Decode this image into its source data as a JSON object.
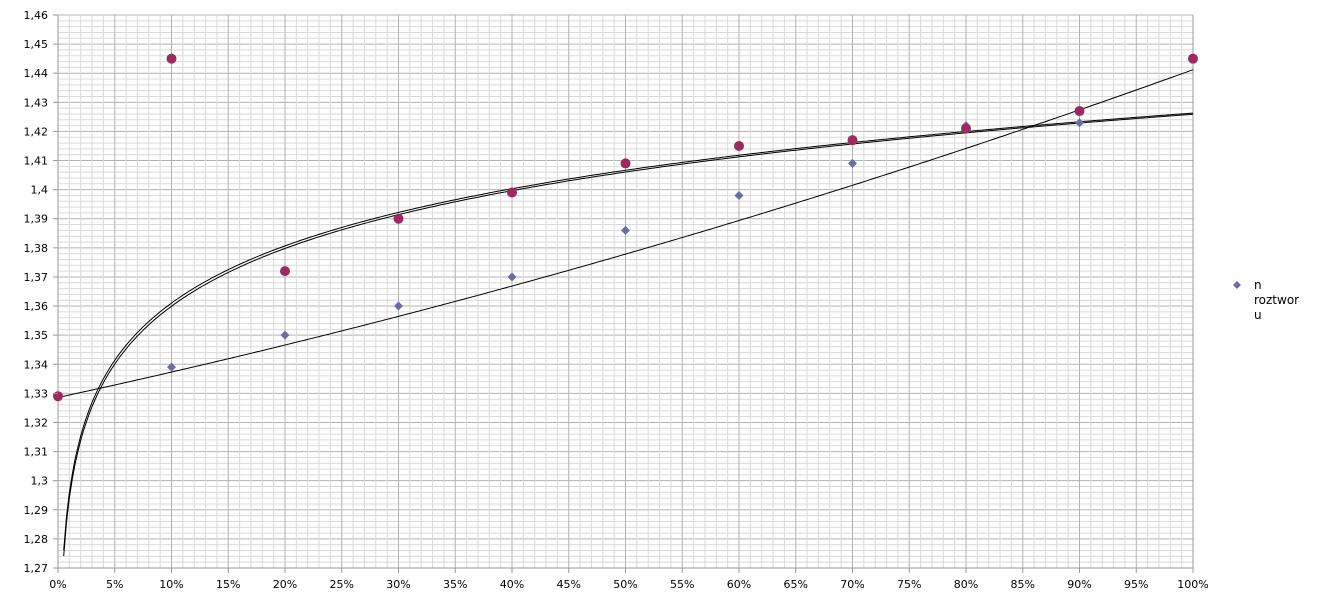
{
  "chart_data": {
    "type": "scatter",
    "title": "",
    "xlabel": "",
    "ylabel": "",
    "xlim": [
      0,
      1
    ],
    "ylim": [
      1.27,
      1.46
    ],
    "x_ticks": [
      0,
      0.05,
      0.1,
      0.15,
      0.2,
      0.25,
      0.3,
      0.35,
      0.4,
      0.45,
      0.5,
      0.55,
      0.6,
      0.65,
      0.7,
      0.75,
      0.8,
      0.85,
      0.9,
      0.95,
      1.0
    ],
    "x_tick_labels": [
      "0%",
      "5%",
      "10%",
      "15%",
      "20%",
      "25%",
      "30%",
      "35%",
      "40%",
      "45%",
      "50%",
      "55%",
      "60%",
      "65%",
      "70%",
      "75%",
      "80%",
      "85%",
      "90%",
      "95%",
      "100%"
    ],
    "y_ticks": [
      1.27,
      1.28,
      1.29,
      1.3,
      1.31,
      1.32,
      1.33,
      1.34,
      1.35,
      1.36,
      1.37,
      1.38,
      1.39,
      1.4,
      1.41,
      1.42,
      1.43,
      1.44,
      1.45,
      1.46
    ],
    "y_tick_labels": [
      "1,27",
      "1,28",
      "1,29",
      "1,3",
      "1,31",
      "1,32",
      "1,33",
      "1,34",
      "1,35",
      "1,36",
      "1,37",
      "1,38",
      "1,39",
      "1,4",
      "1,41",
      "1,42",
      "1,43",
      "1,44",
      "1,45",
      "1,46"
    ],
    "grid": true,
    "legend_position": "right",
    "legend_lines": [
      "n",
      "roztwor",
      "u"
    ],
    "series": [
      {
        "name": "n roztworu",
        "marker": "diamond",
        "color": "#6b6ba6",
        "x": [
          0,
          0.1,
          0.2,
          0.3,
          0.4,
          0.5,
          0.6,
          0.7,
          0.8,
          0.9,
          1.0
        ],
        "y": [
          1.329,
          1.339,
          1.35,
          1.36,
          1.37,
          1.386,
          1.398,
          1.409,
          1.422,
          1.423,
          1.445
        ]
      },
      {
        "name": "",
        "marker": "circle",
        "color": "#9b2a5e",
        "x": [
          0,
          0.1,
          0.2,
          0.3,
          0.4,
          0.5,
          0.6,
          0.7,
          0.8,
          0.9,
          1.0
        ],
        "y": [
          1.329,
          1.445,
          1.372,
          1.39,
          1.399,
          1.409,
          1.415,
          1.417,
          1.421,
          1.427,
          1.445
        ]
      }
    ],
    "trendlines": [
      {
        "kind": "polynomial",
        "a": 1.3286,
        "b": 0.0844,
        "c": 0.0282
      },
      {
        "kind": "log",
        "a": 1.4259,
        "b": 0.02865
      },
      {
        "kind": "log",
        "a": 1.4263,
        "b": 0.02835
      }
    ],
    "colors": {
      "grid": "#b3b3b3",
      "axis": "#999999",
      "trend": "#000000"
    }
  }
}
